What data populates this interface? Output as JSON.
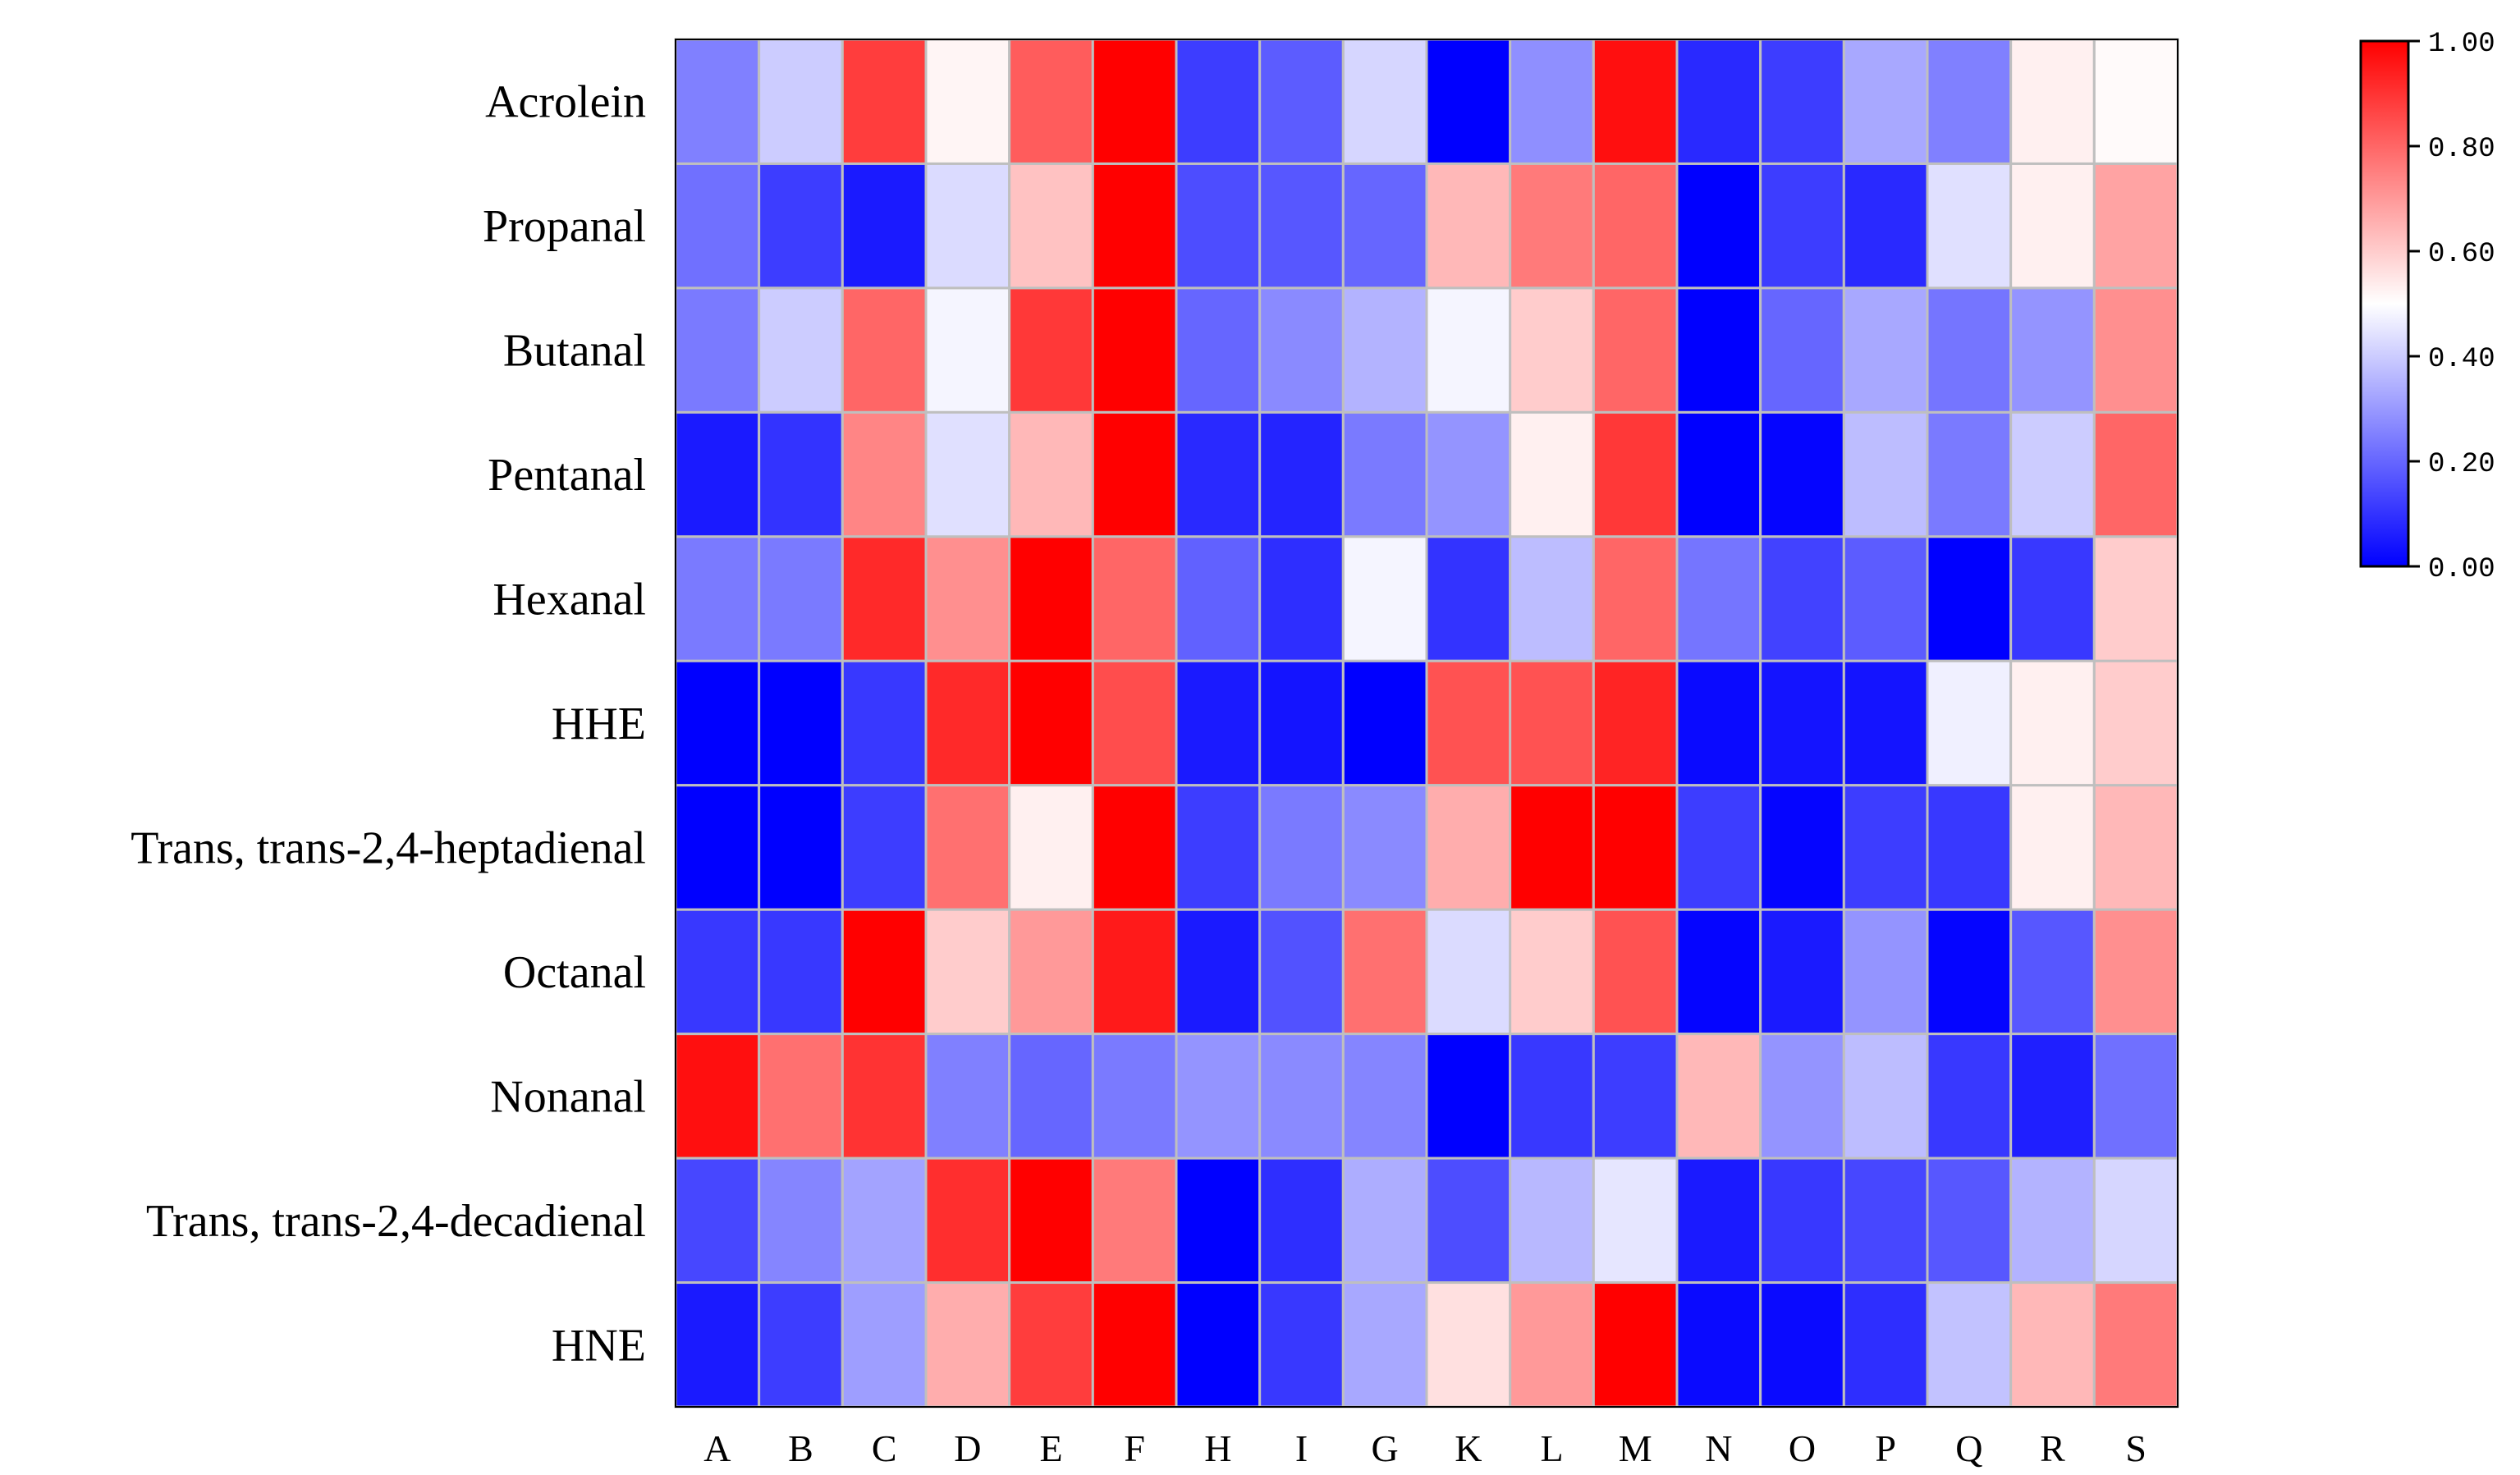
{
  "chart_data": {
    "type": "heatmap",
    "rows": [
      "Acrolein",
      "Propanal",
      "Butanal",
      "Pentanal",
      "Hexanal",
      "HHE",
      "Trans, trans-2,4-heptadienal",
      "Octanal",
      "Nonanal",
      "Trans, trans-2,4-decadienal",
      "HNE"
    ],
    "columns": [
      "A",
      "B",
      "C",
      "D",
      "E",
      "F",
      "H",
      "I",
      "G",
      "K",
      "L",
      "M",
      "N",
      "O",
      "P",
      "Q",
      "R",
      "S"
    ],
    "values": [
      [
        0.25,
        0.4,
        0.88,
        0.52,
        0.82,
        1.0,
        0.12,
        0.18,
        0.42,
        0.0,
        0.28,
        0.97,
        0.08,
        0.12,
        0.33,
        0.25,
        0.53,
        0.51
      ],
      [
        0.22,
        0.12,
        0.05,
        0.43,
        0.62,
        1.0,
        0.15,
        0.17,
        0.2,
        0.64,
        0.76,
        0.8,
        0.0,
        0.12,
        0.08,
        0.44,
        0.53,
        0.68
      ],
      [
        0.24,
        0.4,
        0.8,
        0.48,
        0.89,
        1.0,
        0.2,
        0.27,
        0.35,
        0.48,
        0.6,
        0.8,
        0.0,
        0.2,
        0.33,
        0.23,
        0.29,
        0.72
      ],
      [
        0.05,
        0.1,
        0.74,
        0.44,
        0.64,
        1.0,
        0.08,
        0.07,
        0.24,
        0.29,
        0.53,
        0.89,
        0.0,
        0.01,
        0.37,
        0.24,
        0.4,
        0.8
      ],
      [
        0.24,
        0.24,
        0.92,
        0.72,
        1.0,
        0.8,
        0.19,
        0.09,
        0.48,
        0.1,
        0.37,
        0.8,
        0.23,
        0.13,
        0.18,
        0.0,
        0.11,
        0.6
      ],
      [
        0.0,
        0.0,
        0.11,
        0.92,
        1.0,
        0.85,
        0.05,
        0.04,
        0.0,
        0.84,
        0.84,
        0.93,
        0.02,
        0.04,
        0.04,
        0.47,
        0.53,
        0.6
      ],
      [
        0.0,
        0.0,
        0.12,
        0.78,
        0.53,
        1.0,
        0.12,
        0.24,
        0.27,
        0.66,
        1.0,
        1.0,
        0.12,
        0.01,
        0.12,
        0.11,
        0.53,
        0.64
      ],
      [
        0.11,
        0.11,
        1.0,
        0.6,
        0.7,
        0.95,
        0.05,
        0.16,
        0.78,
        0.43,
        0.6,
        0.84,
        0.01,
        0.05,
        0.29,
        0.01,
        0.17,
        0.72
      ],
      [
        0.97,
        0.78,
        0.9,
        0.25,
        0.2,
        0.24,
        0.29,
        0.27,
        0.26,
        0.0,
        0.11,
        0.12,
        0.64,
        0.29,
        0.37,
        0.11,
        0.06,
        0.22
      ],
      [
        0.14,
        0.26,
        0.32,
        0.91,
        1.0,
        0.76,
        0.0,
        0.09,
        0.34,
        0.15,
        0.36,
        0.45,
        0.05,
        0.11,
        0.14,
        0.17,
        0.35,
        0.42
      ],
      [
        0.05,
        0.12,
        0.31,
        0.66,
        0.88,
        1.0,
        0.0,
        0.11,
        0.33,
        0.56,
        0.7,
        1.0,
        0.02,
        0.02,
        0.09,
        0.38,
        0.64,
        0.76
      ]
    ],
    "colorbar": {
      "ticks": [
        "0.00",
        "0.20",
        "0.40",
        "0.60",
        "0.80",
        "1.00"
      ],
      "range": [
        0,
        1
      ],
      "colors": {
        "low": "#0000ff",
        "mid": "#ffffff",
        "high": "#ff0000"
      }
    },
    "grid_line_color": "#bfbfbf",
    "title": "",
    "xlabel": "",
    "ylabel": ""
  }
}
